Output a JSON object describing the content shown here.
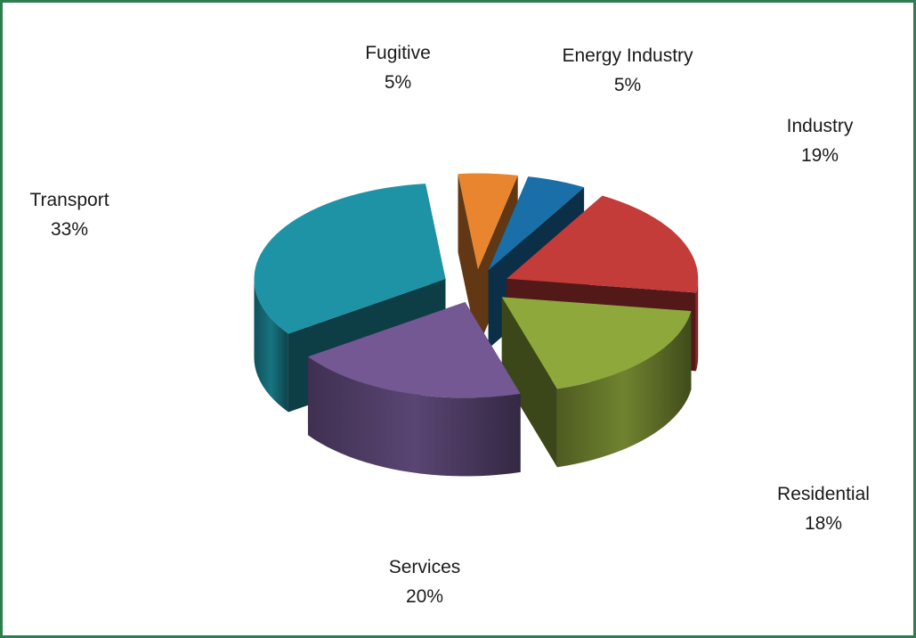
{
  "chart_data": {
    "type": "pie",
    "title": "",
    "slices": [
      {
        "label": "Energy Industry",
        "value": 5,
        "value_label": "5%",
        "color": "#1a6fa8"
      },
      {
        "label": "Industry",
        "value": 19,
        "value_label": "19%",
        "color": "#c33c3a"
      },
      {
        "label": "Residential",
        "value": 18,
        "value_label": "18%",
        "color": "#8ea83c"
      },
      {
        "label": "Services",
        "value": 20,
        "value_label": "20%",
        "color": "#735893"
      },
      {
        "label": "Transport",
        "value": 33,
        "value_label": "33%",
        "color": "#1e93a6"
      },
      {
        "label": "Fugitive",
        "value": 5,
        "value_label": "5%",
        "color": "#e8852e"
      }
    ],
    "style": "3d-exploded",
    "frame_color": "#2e7d4f"
  }
}
